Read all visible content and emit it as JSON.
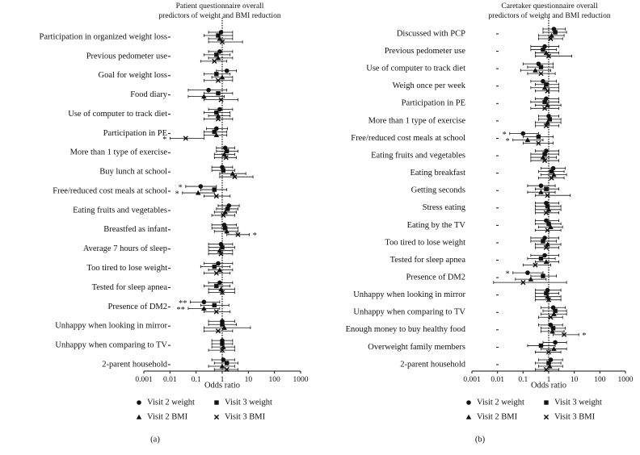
{
  "chart_data": [
    {
      "type": "forest",
      "title": [
        "Patient questionnaire overall",
        "predictors of weight and BMI reduction"
      ],
      "panel_label": "(a)",
      "xlabel": "Odds ratio",
      "xscale": "log",
      "xlim": [
        0.001,
        1000
      ],
      "xticks": [
        0.001,
        0.01,
        0.1,
        1,
        10,
        100,
        1000
      ],
      "reference_line": 1,
      "categories": [
        "Participation in organized weight loss",
        "Previous pedometer use",
        "Goal for weight loss",
        "Food diary",
        "Use of computer to track diet",
        "Participation in PE",
        "More than 1 type of exercise",
        "Buy lunch at school",
        "Free/reduced cost meals at school",
        "Eating fruits and vegetables",
        "Breastfed as infant",
        "Average 7 hours of sleep",
        "Too tired to lose weight",
        "Tested for sleep apnea",
        "Presence of DM2",
        "Unhappy when looking in mirror",
        "Unhappy when comparing to TV",
        "2-parent household"
      ],
      "series": [
        {
          "name": "Visit 2 weight",
          "marker": "circle",
          "color": "#111111",
          "values": [
            0.9,
            0.8,
            1.5,
            0.3,
            0.8,
            0.6,
            1.3,
            1.0,
            0.15,
            1.8,
            1.2,
            0.9,
            0.7,
            0.8,
            0.2,
            1.0,
            1.0,
            1.1
          ],
          "lower": [
            0.3,
            0.3,
            0.6,
            0.05,
            0.3,
            0.25,
            0.6,
            0.4,
            0.04,
            0.7,
            0.4,
            0.3,
            0.2,
            0.3,
            0.06,
            0.3,
            0.4,
            0.4
          ],
          "upper": [
            2.5,
            2.5,
            3.5,
            1.5,
            2.5,
            1.6,
            3,
            2.5,
            0.6,
            4.5,
            3.5,
            2.5,
            2.5,
            2.5,
            0.8,
            3,
            2.5,
            3
          ],
          "significance": [
            null,
            null,
            null,
            null,
            null,
            null,
            null,
            null,
            "*",
            null,
            null,
            null,
            null,
            null,
            "**",
            null,
            null,
            null
          ]
        },
        {
          "name": "Visit 3 weight",
          "marker": "square",
          "color": "#111111",
          "values": [
            0.7,
            0.6,
            0.6,
            0.7,
            0.6,
            0.5,
            1.5,
            1.1,
            0.5,
            1.6,
            1.3,
            1.0,
            0.5,
            0.6,
            0.5,
            1.0,
            1.0,
            1.5
          ],
          "lower": [
            0.2,
            0.2,
            0.2,
            0.2,
            0.2,
            0.2,
            0.6,
            0.4,
            0.15,
            0.6,
            0.4,
            0.3,
            0.15,
            0.2,
            0.15,
            0.3,
            0.4,
            0.5
          ],
          "upper": [
            2.5,
            2,
            2,
            2.5,
            2,
            1.5,
            4,
            3,
            1.5,
            4,
            4,
            3,
            2,
            2,
            1.8,
            3.5,
            2.5,
            4
          ],
          "significance": [
            null,
            null,
            null,
            null,
            null,
            null,
            null,
            null,
            null,
            null,
            null,
            null,
            null,
            null,
            null,
            null,
            null,
            null
          ]
        },
        {
          "name": "Visit 2 BMI",
          "marker": "triangle",
          "color": "#111111",
          "values": [
            0.8,
            0.7,
            1.0,
            0.2,
            0.7,
            0.6,
            1.2,
            2.5,
            0.12,
            1.3,
            1.5,
            0.8,
            0.8,
            0.9,
            0.2,
            1.2,
            1.1,
            1.0
          ],
          "lower": [
            0.3,
            0.3,
            0.4,
            0.05,
            0.3,
            0.2,
            0.5,
            0.8,
            0.03,
            0.5,
            0.5,
            0.3,
            0.3,
            0.3,
            0.05,
            0.2,
            0.4,
            0.3
          ],
          "upper": [
            2.5,
            2.5,
            2.5,
            1.2,
            2,
            1.5,
            3,
            8,
            0.5,
            3.5,
            4,
            2.5,
            2.5,
            3,
            0.8,
            12,
            3,
            3
          ],
          "significance": [
            null,
            null,
            null,
            null,
            null,
            null,
            null,
            null,
            "*",
            null,
            null,
            null,
            null,
            null,
            "**",
            null,
            null,
            null
          ]
        },
        {
          "name": "Visit 3 BMI",
          "marker": "cross",
          "color": "#111111",
          "values": [
            1.0,
            0.5,
            0.7,
            0.9,
            0.7,
            0.04,
            1.4,
            3.0,
            0.6,
            1.1,
            4.0,
            0.9,
            0.6,
            1.0,
            0.6,
            0.7,
            1.0,
            1.5
          ],
          "lower": [
            0.3,
            0.15,
            0.2,
            0.2,
            0.2,
            0.01,
            0.5,
            0.8,
            0.2,
            0.4,
            1.5,
            0.3,
            0.2,
            0.3,
            0.2,
            0.2,
            0.3,
            0.5
          ],
          "upper": [
            6,
            1.5,
            2.5,
            4,
            2.5,
            0.2,
            3.5,
            15,
            2,
            3,
            11,
            2.5,
            2,
            3,
            2,
            2.5,
            3,
            4
          ],
          "significance": [
            null,
            null,
            null,
            null,
            null,
            "*",
            null,
            null,
            null,
            null,
            "*",
            null,
            null,
            null,
            null,
            null,
            null,
            null
          ]
        }
      ]
    },
    {
      "type": "forest",
      "title": [
        "Caretaker questionnaire overall",
        "predictors of weight and BMI reduction"
      ],
      "panel_label": "(b)",
      "xlabel": "Odds ratio",
      "xscale": "log",
      "xlim": [
        0.001,
        1000
      ],
      "xticks": [
        0.001,
        0.01,
        0.1,
        1,
        10,
        100,
        1000
      ],
      "reference_line": 1,
      "categories": [
        "Discussed with PCP",
        "Previous pedometer use",
        "Use of computer to track diet",
        "Weigh once per week",
        "Participation in PE",
        "More than 1 type of exercise",
        "Free/reduced cost meals at school",
        "Eating fruits and vegetables",
        "Eating breakfast",
        "Getting seconds",
        "Stress eating",
        "Eating by the TV",
        "Too tired to lose weight",
        "Tested for sleep apnea",
        "Presence of DM2",
        "Unhappy when looking in mirror",
        "Unhappy when comparing to TV",
        "Enough money to buy healthy food",
        "Overweight family members",
        "2-parent household"
      ],
      "series": [
        {
          "name": "Visit 2 weight",
          "marker": "circle",
          "color": "#111111",
          "values": [
            1.6,
            0.7,
            0.4,
            0.6,
            0.8,
            1.0,
            0.1,
            0.8,
            1.5,
            0.5,
            0.8,
            0.8,
            0.7,
            0.7,
            0.15,
            0.9,
            1.5,
            1.2,
            1.8,
            1.2
          ],
          "lower": [
            0.6,
            0.2,
            0.1,
            0.2,
            0.3,
            0.4,
            0.03,
            0.3,
            0.5,
            0.15,
            0.3,
            0.3,
            0.2,
            0.2,
            0.04,
            0.3,
            0.5,
            0.4,
            0.6,
            0.4
          ],
          "upper": [
            4.5,
            2.5,
            1.5,
            2,
            2.5,
            2.5,
            0.4,
            2.5,
            4.5,
            1.8,
            2.5,
            2.5,
            2.5,
            2.5,
            0.6,
            3,
            4.5,
            3.5,
            5,
            3.5
          ],
          "significance": [
            null,
            null,
            null,
            null,
            null,
            null,
            "*",
            null,
            null,
            null,
            null,
            null,
            null,
            null,
            "*",
            null,
            null,
            null,
            null,
            null
          ]
        },
        {
          "name": "Visit 3 weight",
          "marker": "square",
          "color": "#111111",
          "values": [
            1.8,
            0.6,
            0.5,
            0.8,
            0.7,
            1.1,
            0.4,
            0.7,
            1.3,
            0.8,
            0.9,
            1.0,
            0.6,
            0.5,
            0.6,
            0.8,
            1.8,
            1.5,
            0.5,
            1.0
          ],
          "lower": [
            0.6,
            0.2,
            0.15,
            0.3,
            0.2,
            0.4,
            0.1,
            0.2,
            0.4,
            0.3,
            0.3,
            0.3,
            0.2,
            0.15,
            0.2,
            0.3,
            0.6,
            0.5,
            0.15,
            0.3
          ],
          "upper": [
            5,
            2,
            1.5,
            2.5,
            2.5,
            3,
            1.5,
            2.5,
            4,
            2.5,
            3,
            3,
            2,
            1.8,
            2,
            2.5,
            5,
            4.5,
            1.8,
            3
          ],
          "significance": [
            null,
            null,
            null,
            null,
            null,
            null,
            null,
            null,
            null,
            null,
            null,
            null,
            null,
            null,
            null,
            null,
            null,
            null,
            null,
            null
          ]
        },
        {
          "name": "Visit 2 BMI",
          "marker": "triangle",
          "color": "#111111",
          "values": [
            1.3,
            0.8,
            0.3,
            0.7,
            0.9,
            0.9,
            0.15,
            0.6,
            1.6,
            0.5,
            1.0,
            1.2,
            0.9,
            0.8,
            0.2,
            0.9,
            1.6,
            1.4,
            1.6,
            1.1
          ],
          "lower": [
            0.4,
            0.3,
            0.08,
            0.2,
            0.3,
            0.3,
            0.04,
            0.2,
            0.5,
            0.15,
            0.3,
            0.4,
            0.3,
            0.3,
            0.05,
            0.3,
            0.5,
            0.5,
            0.5,
            0.4
          ],
          "upper": [
            4,
            2.5,
            1.2,
            2.5,
            3,
            3,
            0.6,
            2,
            5,
            1.8,
            3,
            3.5,
            3,
            2.5,
            0.8,
            3,
            5,
            4,
            5,
            3.5
          ],
          "significance": [
            null,
            null,
            null,
            null,
            null,
            null,
            "*",
            null,
            null,
            null,
            null,
            null,
            null,
            null,
            null,
            null,
            null,
            null,
            null,
            null
          ]
        },
        {
          "name": "Visit 3 BMI",
          "marker": "cross",
          "color": "#111111",
          "values": [
            1.2,
            1.0,
            0.5,
            0.9,
            0.7,
            0.8,
            0.4,
            0.7,
            1.3,
            0.9,
            0.8,
            0.9,
            0.8,
            0.3,
            0.1,
            1.0,
            1.2,
            4.0,
            1.0,
            0.8
          ],
          "lower": [
            0.4,
            0.3,
            0.15,
            0.3,
            0.2,
            0.3,
            0.1,
            0.2,
            0.4,
            0.3,
            0.3,
            0.3,
            0.3,
            0.1,
            0.007,
            0.3,
            0.4,
            1.5,
            0.3,
            0.3
          ],
          "upper": [
            3.5,
            8,
            1.8,
            2.5,
            2.5,
            2.5,
            1.5,
            2.5,
            4,
            7,
            2.5,
            3,
            2.5,
            1.2,
            5,
            3,
            3.5,
            15,
            3,
            2.5
          ],
          "significance": [
            null,
            null,
            null,
            null,
            null,
            null,
            null,
            null,
            null,
            null,
            null,
            null,
            null,
            null,
            null,
            null,
            null,
            "*",
            null,
            null
          ]
        }
      ]
    }
  ]
}
